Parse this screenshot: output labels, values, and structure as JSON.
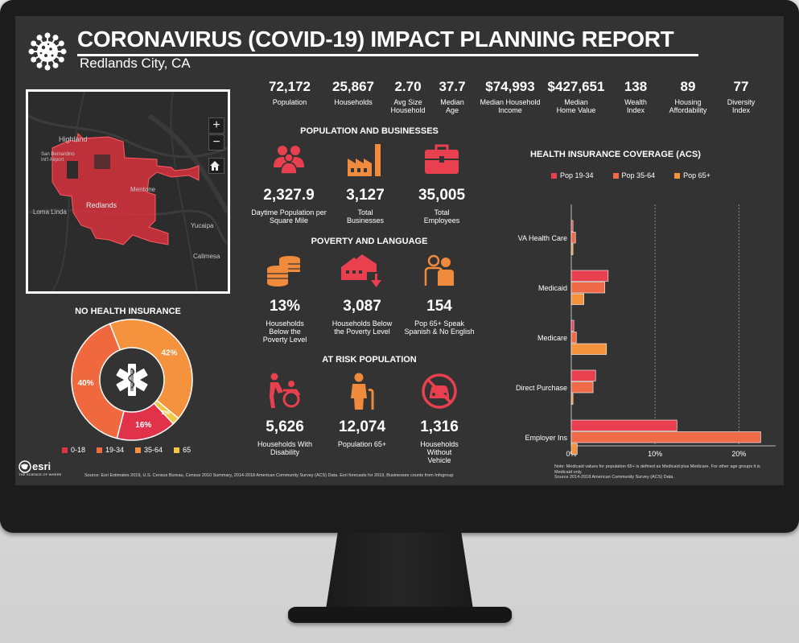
{
  "header": {
    "title": "CORONAVIRUS (COVID-19) IMPACT PLANNING REPORT",
    "subtitle": "Redlands City, CA"
  },
  "map": {
    "labels": [
      "Highland",
      "San Bernardino Int'l Airport",
      "Mentone",
      "Redlands",
      "Loma Linda",
      "Yucaipa",
      "Calimesa"
    ],
    "zoom_in": "+",
    "zoom_out": "−"
  },
  "stats": [
    {
      "value": "72,172",
      "label": "Population"
    },
    {
      "value": "25,867",
      "label": "Households"
    },
    {
      "value": "2.70",
      "label": "Avg Size Household"
    },
    {
      "value": "37.7",
      "label": "Median Age"
    },
    {
      "value": "$74,993",
      "label": "Median Household Income"
    },
    {
      "value": "$427,651",
      "label": "Median Home Value"
    },
    {
      "value": "138",
      "label": "Wealth Index"
    },
    {
      "value": "89",
      "label": "Housing Affordability"
    },
    {
      "value": "77",
      "label": "Diversity Index"
    }
  ],
  "sections": {
    "pop_business": "POPULATION AND BUSINESSES",
    "poverty": "POVERTY AND LANGUAGE",
    "at_risk": "AT RISK POPULATION",
    "no_insurance": "NO HEALTH INSURANCE",
    "health_coverage": "HEALTH INSURANCE COVERAGE (ACS)"
  },
  "pop_business": [
    {
      "icon": "people-icon",
      "value": "2,327.9",
      "label": "Daytime Population per Square Mile"
    },
    {
      "icon": "factory-icon",
      "value": "3,127",
      "label": "Total Businesses"
    },
    {
      "icon": "briefcase-icon",
      "value": "35,005",
      "label": "Total Employees"
    }
  ],
  "poverty": [
    {
      "icon": "coins-icon",
      "value": "13%",
      "label": "Households Below the Poverty Level"
    },
    {
      "icon": "house-down-icon",
      "value": "3,087",
      "label": "Households Below the Poverty Level"
    },
    {
      "icon": "speaking-people-icon",
      "value": "154",
      "label": "Pop 65+ Speak Spanish & No English"
    }
  ],
  "at_risk": [
    {
      "icon": "wheelchair-icon",
      "value": "5,626",
      "label": "Households With Disability"
    },
    {
      "icon": "elderly-icon",
      "value": "12,074",
      "label": "Population 65+"
    },
    {
      "icon": "no-vehicle-icon",
      "value": "1,316",
      "label": "Households Without Vehicle"
    }
  ],
  "donut": {
    "slices": [
      {
        "name": "0-18",
        "value": 2,
        "label": "2%",
        "color": "#e0334a"
      },
      {
        "name": "19-34",
        "value": 16,
        "label": "16%",
        "color": "#e0334a"
      },
      {
        "name": "35-64",
        "value": 40,
        "label": "40%",
        "color": "#f0693e"
      },
      {
        "name": "65",
        "value": 42,
        "label": "42%",
        "color": "#f5923e"
      }
    ],
    "legend_colors": [
      "#e0334a",
      "#f0693e",
      "#f5923e",
      "#f3c742"
    ]
  },
  "chart_data": {
    "type": "bar",
    "orientation": "horizontal",
    "categories": [
      "VA Health Care",
      "Medicaid",
      "Medicare",
      "Direct Purchase",
      "Employer Ins"
    ],
    "series": [
      {
        "name": "Pop 19-34",
        "color": "#e8404f",
        "values": [
          0.2,
          4.4,
          0.3,
          2.9,
          12.6
        ]
      },
      {
        "name": "Pop 35-64",
        "color": "#ef6a47",
        "values": [
          0.5,
          4.0,
          0.6,
          2.6,
          22.6
        ]
      },
      {
        "name": "Pop 65+",
        "color": "#f5923e",
        "values": [
          0.2,
          1.5,
          4.2,
          0.2,
          0.7
        ]
      }
    ],
    "ticks": [
      "0%",
      "10%",
      "20%"
    ],
    "xlim": [
      0,
      24
    ],
    "grid": true,
    "legend_position": "top"
  },
  "footer": {
    "esri_name": "esri",
    "esri_tag": "THE SCIENCE OF WHERE",
    "source": "Source: Esri Estimates 2019, U.S. Census Bureau, Census 2010 Summary, 2014-2018 American Community Survey (ACS) Data. Esri forecasts for 2019, Businesses counts from Infogroup",
    "note": "Note: Medicaid values for population 65+ is defined as Medicaid plus Medicare. For other age groups it is Medicaid only.",
    "note_source": "Source 2014-2018 American Community Survey (ACS) Data."
  }
}
